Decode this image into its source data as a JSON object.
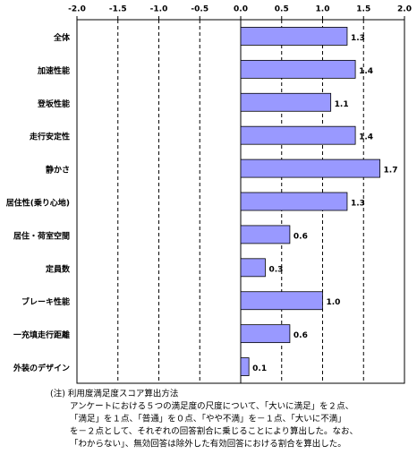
{
  "chart_data": {
    "type": "hbar",
    "categories": [
      "全体",
      "加速性能",
      "登坂性能",
      "走行安定性",
      "静かさ",
      "居住性(乗り心地)",
      "居住・荷室空間",
      "定員数",
      "ブレーキ性能",
      "一充填走行距離",
      "外装のデザイン"
    ],
    "values": [
      1.3,
      1.4,
      1.1,
      1.4,
      1.7,
      1.3,
      0.6,
      0.3,
      1.0,
      0.6,
      0.1
    ],
    "value_labels": [
      "1.3",
      "1.4",
      "1.1",
      "1.4",
      "1.7",
      "1.3",
      "0.6",
      "0.3",
      "1.0",
      "0.6",
      "0.1"
    ],
    "color": "#9999ff",
    "xlim": [
      -2.0,
      2.0
    ],
    "xticks": [
      {
        "value": -2.0,
        "label": "-2.0"
      },
      -1.5,
      {
        "value": -1.0,
        "label": "-1.0"
      },
      -0.5,
      {
        "value": 0.0,
        "label": "0.0"
      },
      0.5,
      {
        "value": 1.0,
        "label": "1.0"
      },
      1.5,
      {
        "value": 2.0,
        "label": "2.0"
      }
    ],
    "grid": true,
    "note": [
      "(注) 利用度満足度スコア算出方法",
      "アンケートにおける５つの満足度の尺度について、「大いに満足」を２点、",
      "「満足」を１点、「普通」を０点、「やや不満」を－１点、「大いに不満」",
      "を－２点として、それぞれの回答割合に乗じることにより算出した。なお、",
      "「わからない」、無効回答は除外した有効回答における割合を算出した。"
    ]
  }
}
